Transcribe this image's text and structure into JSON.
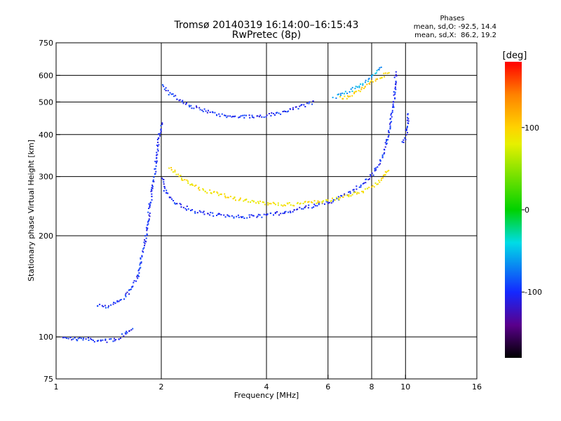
{
  "chart_data": {
    "type": "scatter",
    "title": "Tromsø 20140319 16:14:00–16:15:43",
    "subtitle": "RwPretec (8p)",
    "stats": {
      "heading": "Phases",
      "line1": "mean, sd,O: -92.5, 14.4",
      "line2": "mean, sd,X:  86.2, 19.2"
    },
    "xlabel": "Frequency [MHz]",
    "ylabel": "Stationary phase Virtual Height [km]",
    "x_scale": "log",
    "y_scale": "log",
    "xlim": [
      1,
      16
    ],
    "ylim": [
      75,
      750
    ],
    "x_ticks": [
      1,
      2,
      4,
      6,
      8,
      10,
      16
    ],
    "x_tick_labels": [
      "1",
      "2",
      "4",
      "6",
      "8",
      "10",
      "16"
    ],
    "y_ticks": [
      75,
      100,
      200,
      300,
      400,
      500,
      600,
      750
    ],
    "y_tick_labels": [
      "75",
      "100",
      "200",
      "300",
      "400",
      "500",
      "600",
      "750"
    ],
    "x_gridlines": [
      2,
      4,
      6,
      8,
      10
    ],
    "y_gridlines": [
      100,
      200,
      300,
      400,
      500,
      600
    ],
    "grid": true,
    "colorbar": {
      "label": "[deg]",
      "min": -180,
      "max": 180,
      "ticks": [
        100,
        0,
        -100
      ],
      "tick_labels": [
        "100",
        "0",
        "-100"
      ],
      "placement": "right"
    },
    "series": [
      {
        "trace": "E-F1 low-frequency trace",
        "phase": -100,
        "points": [
          [
            1.05,
            101
          ],
          [
            1.1,
            99
          ],
          [
            1.2,
            99
          ],
          [
            1.3,
            98
          ],
          [
            1.4,
            98
          ],
          [
            1.5,
            99
          ],
          [
            1.55,
            102
          ],
          [
            1.6,
            104
          ],
          [
            1.65,
            108
          ]
        ]
      },
      {
        "trace": "F1 cusp lower branch",
        "phase": -100,
        "points": [
          [
            1.3,
            125
          ],
          [
            1.4,
            124
          ],
          [
            1.5,
            128
          ],
          [
            1.6,
            135
          ],
          [
            1.7,
            150
          ],
          [
            1.75,
            175
          ],
          [
            1.8,
            200
          ],
          [
            1.85,
            250
          ],
          [
            1.9,
            300
          ],
          [
            1.95,
            380
          ],
          [
            2.0,
            440
          ]
        ]
      },
      {
        "trace": "F2 O-mode trace",
        "phase": -100,
        "points": [
          [
            2.0,
            300
          ],
          [
            2.05,
            270
          ],
          [
            2.2,
            250
          ],
          [
            2.5,
            237
          ],
          [
            3.0,
            230
          ],
          [
            3.5,
            229
          ],
          [
            4.0,
            231
          ],
          [
            4.5,
            236
          ],
          [
            5.0,
            242
          ],
          [
            5.5,
            247
          ],
          [
            6.0,
            252
          ],
          [
            6.5,
            262
          ],
          [
            7.0,
            272
          ],
          [
            7.5,
            287
          ],
          [
            8.0,
            305
          ],
          [
            8.5,
            340
          ],
          [
            8.8,
            380
          ],
          [
            9.0,
            430
          ],
          [
            9.2,
            500
          ],
          [
            9.3,
            560
          ],
          [
            9.35,
            620
          ]
        ]
      },
      {
        "trace": "F2 X-mode trace",
        "phase": 90,
        "points": [
          [
            2.1,
            320
          ],
          [
            2.3,
            295
          ],
          [
            2.6,
            275
          ],
          [
            3.0,
            265
          ],
          [
            3.5,
            255
          ],
          [
            4.0,
            250
          ],
          [
            4.5,
            249
          ],
          [
            5.0,
            250
          ],
          [
            5.5,
            253
          ],
          [
            6.0,
            256
          ],
          [
            6.5,
            261
          ],
          [
            7.0,
            267
          ],
          [
            7.5,
            273
          ],
          [
            8.0,
            282
          ],
          [
            8.5,
            296
          ],
          [
            9.0,
            318
          ]
        ]
      },
      {
        "trace": "Multiple-hop trace",
        "phase": -100,
        "points": [
          [
            2.0,
            560
          ],
          [
            2.1,
            530
          ],
          [
            2.4,
            490
          ],
          [
            2.7,
            470
          ],
          [
            3.0,
            458
          ],
          [
            3.5,
            455
          ],
          [
            4.0,
            458
          ],
          [
            4.5,
            470
          ],
          [
            5.0,
            486
          ],
          [
            5.5,
            505
          ]
        ]
      },
      {
        "trace": "High echo segment",
        "phase": -60,
        "points": [
          [
            6.2,
            520
          ],
          [
            6.6,
            530
          ],
          [
            7.0,
            545
          ],
          [
            7.5,
            570
          ],
          [
            8.0,
            600
          ],
          [
            8.5,
            640
          ]
        ]
      },
      {
        "trace": "Upper X segment",
        "phase": 100,
        "points": [
          [
            6.5,
            515
          ],
          [
            7.0,
            525
          ],
          [
            7.5,
            550
          ],
          [
            8.0,
            575
          ],
          [
            8.6,
            600
          ],
          [
            9.0,
            620
          ]
        ]
      },
      {
        "trace": "High-frequency cusp",
        "phase": -100,
        "points": [
          [
            9.8,
            380
          ],
          [
            10.0,
            400
          ],
          [
            10.1,
            440
          ],
          [
            10.15,
            470
          ]
        ]
      }
    ]
  }
}
